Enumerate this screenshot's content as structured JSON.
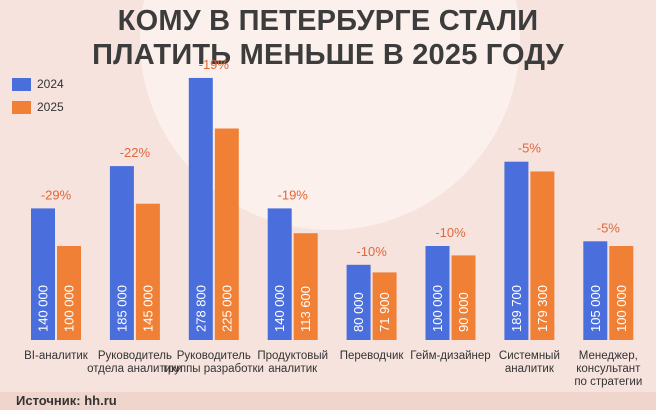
{
  "title_lines": [
    "КОМУ В ПЕТЕРБУРГЕ СТАЛИ",
    "ПЛАТИТЬ МЕНЬШЕ В 2025 ГОДУ"
  ],
  "source": "Источник: hh.ru",
  "colors": {
    "2024": "#4a6fdc",
    "2025": "#ef8035",
    "pct": "#e0673a"
  },
  "chart_data": {
    "type": "bar",
    "title": "КОМУ В ПЕТЕРБУРГЕ СТАЛИ ПЛАТИТЬ МЕНЬШЕ В 2025 ГОДУ",
    "categories": [
      [
        "BI-аналитик"
      ],
      [
        "Руководитель",
        "отдела аналитики"
      ],
      [
        "Руководитель",
        "группы разработки"
      ],
      [
        "Продуктовый",
        "аналитик"
      ],
      [
        "Переводчик"
      ],
      [
        "Гейм-дизайнер"
      ],
      [
        "Системный",
        "аналитик"
      ],
      [
        "Менеджер,",
        "консультант",
        "по стратегии"
      ]
    ],
    "series": [
      {
        "name": "2024",
        "values": [
          140000,
          185000,
          278800,
          140000,
          80000,
          100000,
          189700,
          105000
        ],
        "labels": [
          "140 000",
          "185 000",
          "278 800",
          "140 000",
          "80 000",
          "100 000",
          "189 700",
          "105 000"
        ]
      },
      {
        "name": "2025",
        "values": [
          100000,
          145000,
          225000,
          113600,
          71900,
          90000,
          179300,
          100000
        ],
        "labels": [
          "100 000",
          "145 000",
          "225 000",
          "113 600",
          "71 900",
          "90 000",
          "179 300",
          "100 000"
        ]
      }
    ],
    "changes": [
      "-29%",
      "-22%",
      "-19%",
      "-19%",
      "-10%",
      "-10%",
      "-5%",
      "-5%"
    ],
    "ylim": [
      0,
      300000
    ],
    "legend": "top-left",
    "grid": false
  }
}
